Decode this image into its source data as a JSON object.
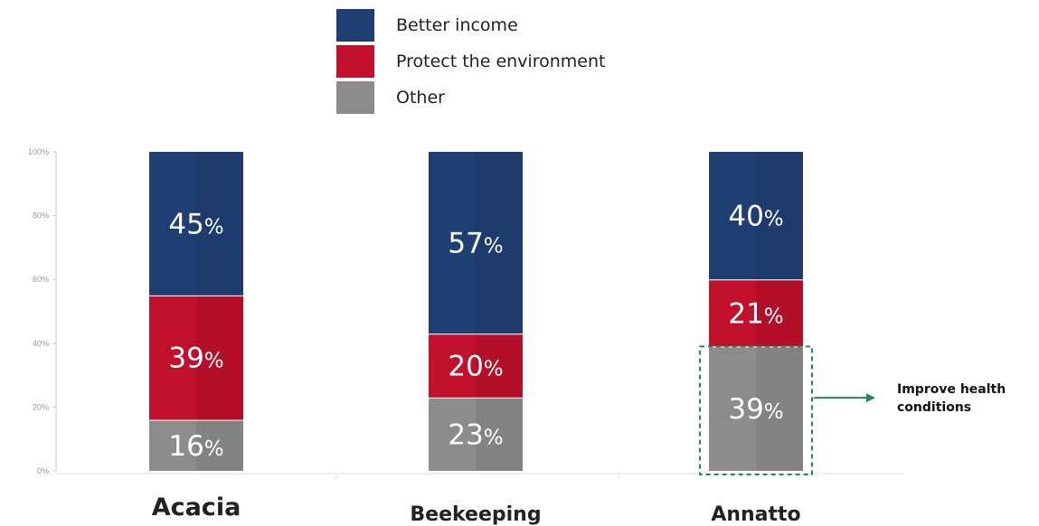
{
  "chart_data": {
    "type": "bar",
    "stacked": true,
    "categories": [
      "Acacia",
      "Beekeeping",
      "Annatto"
    ],
    "series": [
      {
        "name": "Other",
        "values": [
          16,
          23,
          39
        ],
        "labels": [
          "16%",
          "23%",
          "39%"
        ],
        "color": "#8c8c8c"
      },
      {
        "name": "Protect the environment",
        "values": [
          39,
          20,
          21
        ],
        "labels": [
          "39%",
          "20%",
          "21%"
        ],
        "color": "#c0102c"
      },
      {
        "name": "Better income",
        "values": [
          45,
          57,
          40
        ],
        "labels": [
          "45%",
          "57%",
          "40%"
        ],
        "color": "#1f3f73"
      }
    ],
    "legend_order": [
      "Better income",
      "Protect the environment",
      "Other"
    ],
    "y_ticks": [
      0,
      20,
      40,
      60,
      80,
      100
    ],
    "y_tick_labels": [
      "0%",
      "20%",
      "40%",
      "60%",
      "80%",
      "100%"
    ],
    "ylim": [
      0,
      100
    ],
    "legend_position": "top-center",
    "grid": false,
    "annotation": {
      "category": "Annatto",
      "series": "Other",
      "lines": [
        "Improve health",
        "conditions"
      ],
      "color": "#1a8a5a"
    }
  }
}
